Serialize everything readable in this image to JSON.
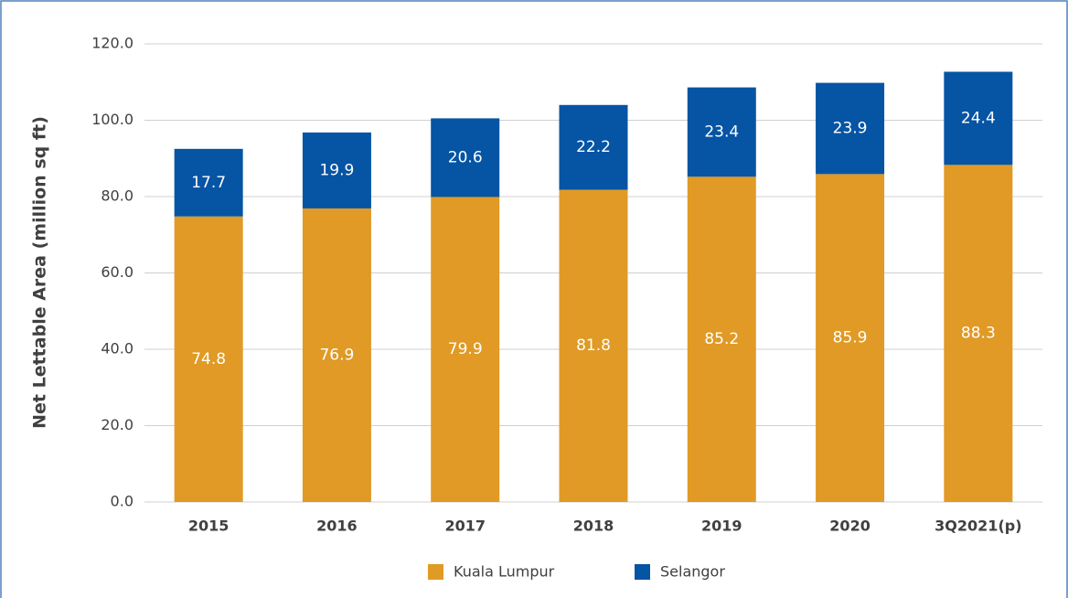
{
  "chart_data": {
    "type": "stacked_bar",
    "y_label": "Net Lettable Area (million sq ft)",
    "categories": [
      "2015",
      "2016",
      "2017",
      "2018",
      "2019",
      "2020",
      "3Q2021(p)"
    ],
    "series": [
      {
        "name": "Kuala Lumpur",
        "color": "#e09a25",
        "values": [
          74.8,
          76.9,
          79.9,
          81.8,
          85.2,
          85.9,
          88.3
        ]
      },
      {
        "name": "Selangor",
        "color": "#0654a4",
        "values": [
          17.7,
          19.9,
          20.6,
          22.2,
          23.4,
          23.9,
          24.4
        ]
      }
    ],
    "ylim": [
      0,
      120
    ],
    "yticks": [
      {
        "value": 0,
        "label": "0.0"
      },
      {
        "value": 20,
        "label": "20.0"
      },
      {
        "value": 40,
        "label": "40.0"
      },
      {
        "value": 60,
        "label": "60.0"
      },
      {
        "value": 80,
        "label": "80.0"
      },
      {
        "value": 100,
        "label": "100.0"
      },
      {
        "value": 120,
        "label": "120.0"
      }
    ],
    "grid": true,
    "legend": "bottom"
  }
}
